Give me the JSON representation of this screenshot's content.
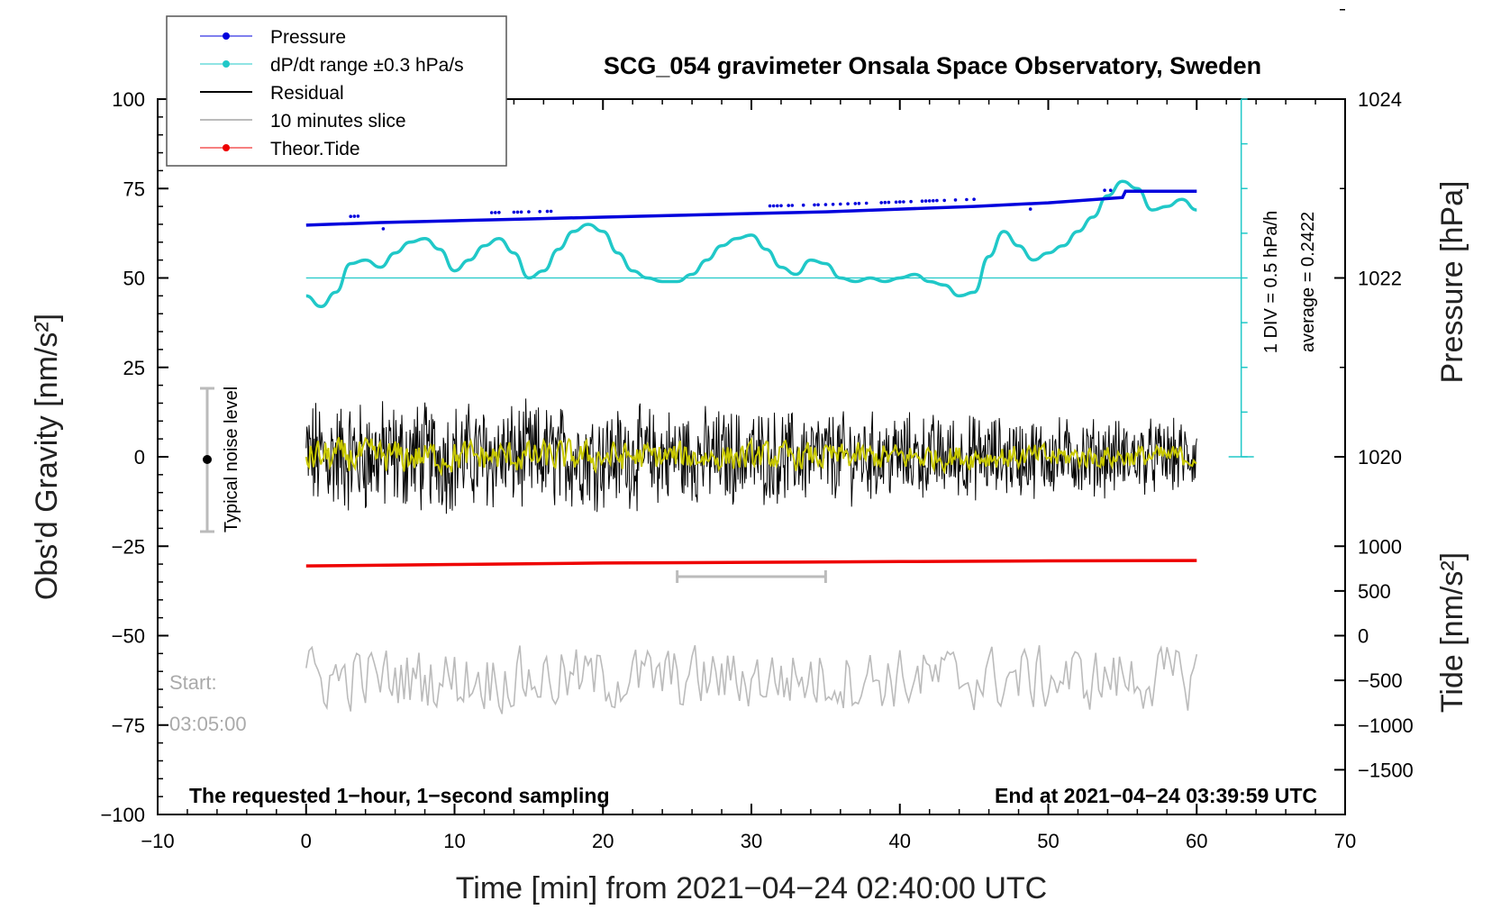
{
  "chart_data": {
    "type": "line",
    "title": "SCG_054 gravimeter Onsala Space Observatory, Sweden",
    "xlabel": "Time [min] from 2021−04−24 02:40:00 UTC",
    "ylabel_left": "Obs'd Gravity [nm/s²]",
    "ylabel_right_top": "Pressure [hPa]",
    "ylabel_right_bottom": "Tide [nm/s²]",
    "xlim": [
      -10,
      70
    ],
    "ylim_left": [
      -100,
      100
    ],
    "x_ticks": [
      "−10",
      "0",
      "10",
      "20",
      "30",
      "40",
      "50",
      "60",
      "70"
    ],
    "y_ticks_left": [
      "−100",
      "−75",
      "−50",
      "−25",
      "0",
      "25",
      "50",
      "75",
      "100"
    ],
    "y_ticks_pressure": [
      "1020",
      "1022",
      "1024"
    ],
    "y_ticks_tide": [
      "−1500",
      "−1000",
      "−500",
      "0",
      "500",
      "1000"
    ],
    "legend": [
      {
        "label": "Pressure",
        "color": "#0000dd"
      },
      {
        "label": "dP/dt range ±0.3 hPa/s",
        "color": "#20c8c8"
      },
      {
        "label": "Residual",
        "color": "#000000"
      },
      {
        "label": "10 minutes slice",
        "color": "#bbbbbb"
      },
      {
        "label": "Theor.Tide",
        "color": "#ee0000"
      }
    ],
    "annotations": {
      "noise_label": "Typical noise level",
      "div_label": "1 DIV = 0.5 hPa/h",
      "average_label": "average = 0.2422",
      "start_label": "Start:",
      "start_time": "03:05:00",
      "bottom_left": "The requested 1−hour, 1−second sampling",
      "bottom_right": "End at 2021−04−24 03:39:59 UTC"
    },
    "typical_noise_level_nms2": [
      -20,
      20
    ],
    "slice_window_min": [
      25,
      35
    ],
    "series": [
      {
        "name": "Pressure",
        "unit": "hPa",
        "color": "#0000dd",
        "x": [
          0,
          5,
          10,
          15,
          20,
          25,
          30,
          35,
          40,
          45,
          50,
          55,
          55.2,
          60
        ],
        "values": [
          1022.59,
          1022.62,
          1022.64,
          1022.66,
          1022.68,
          1022.7,
          1022.72,
          1022.74,
          1022.77,
          1022.8,
          1022.84,
          1022.9,
          1022.97,
          1022.97
        ]
      },
      {
        "name": "dP/dt",
        "unit": "nm/s² (plot units)",
        "color": "#20c8c8",
        "x": [
          0,
          1,
          2,
          3,
          4,
          5,
          6,
          7,
          8,
          9,
          10,
          11,
          12,
          13,
          14,
          15,
          16,
          17,
          18,
          19,
          20,
          21,
          22,
          23,
          24,
          25,
          26,
          27,
          28,
          29,
          30,
          31,
          32,
          33,
          34,
          35,
          36,
          37,
          38,
          39,
          40,
          41,
          42,
          43,
          44,
          45,
          46,
          47,
          48,
          49,
          50,
          51,
          52,
          53,
          54,
          55,
          56,
          57,
          58,
          59,
          60
        ],
        "values": [
          45,
          42,
          46,
          54,
          55,
          53,
          57,
          60,
          61,
          58,
          52,
          55,
          59,
          61,
          57,
          50,
          52,
          58,
          63,
          65,
          63,
          57,
          52,
          50,
          49,
          49,
          51,
          55,
          59,
          61,
          62,
          58,
          53,
          51,
          55,
          54,
          50,
          49,
          50,
          49,
          50,
          51,
          49,
          48,
          45,
          46,
          56,
          63,
          59,
          55,
          57,
          59,
          63,
          67,
          73,
          77,
          75,
          69,
          70,
          72,
          69
        ]
      },
      {
        "name": "Theor.Tide",
        "unit": "nm/s² (plot units)",
        "color": "#ee0000",
        "x": [
          0,
          10,
          20,
          30,
          40,
          50,
          60
        ],
        "values": [
          -30.5,
          -30.1,
          -29.7,
          -29.5,
          -29.3,
          -29.1,
          -29.0
        ]
      },
      {
        "name": "Residual",
        "unit": "nm/s²",
        "color": "#000000",
        "x_range": [
          0,
          60
        ],
        "amplitude_range": [
          -23,
          18
        ]
      },
      {
        "name": "Smoothed residual",
        "unit": "nm/s²",
        "color": "#c8c800",
        "x_range": [
          0,
          60
        ]
      },
      {
        "name": "10 minutes slice",
        "unit": "nm/s²",
        "color": "#bbbbbb",
        "x_range": [
          0,
          60
        ],
        "amplitude_range": [
          -77,
          -49
        ]
      }
    ]
  }
}
